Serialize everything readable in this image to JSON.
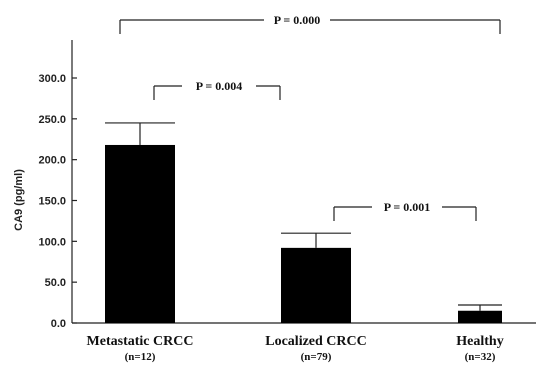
{
  "chart_data": {
    "type": "bar",
    "ylabel": "CA9  (pg/ml)",
    "ylim": [
      0,
      350
    ],
    "yticks": [
      "0.0",
      "50.0",
      "100.0",
      "150.0",
      "200.0",
      "250.0",
      "300.0"
    ],
    "categories": [
      "Metastatic CRCC",
      "Localized CRCC",
      "Healthy"
    ],
    "sample_sizes": [
      "(n=12)",
      "(n=79)",
      "(n=32)"
    ],
    "values": [
      218,
      92,
      15
    ],
    "error_upper": [
      245,
      110,
      22
    ],
    "bar_color": "#000000",
    "grid": false,
    "annotations": [
      {
        "label": "P = 0.000",
        "from": 0,
        "to": 2
      },
      {
        "label": "P = 0.004",
        "from": 0,
        "to": 1
      },
      {
        "label": "P = 0.001",
        "from": 1,
        "to": 2
      }
    ]
  }
}
